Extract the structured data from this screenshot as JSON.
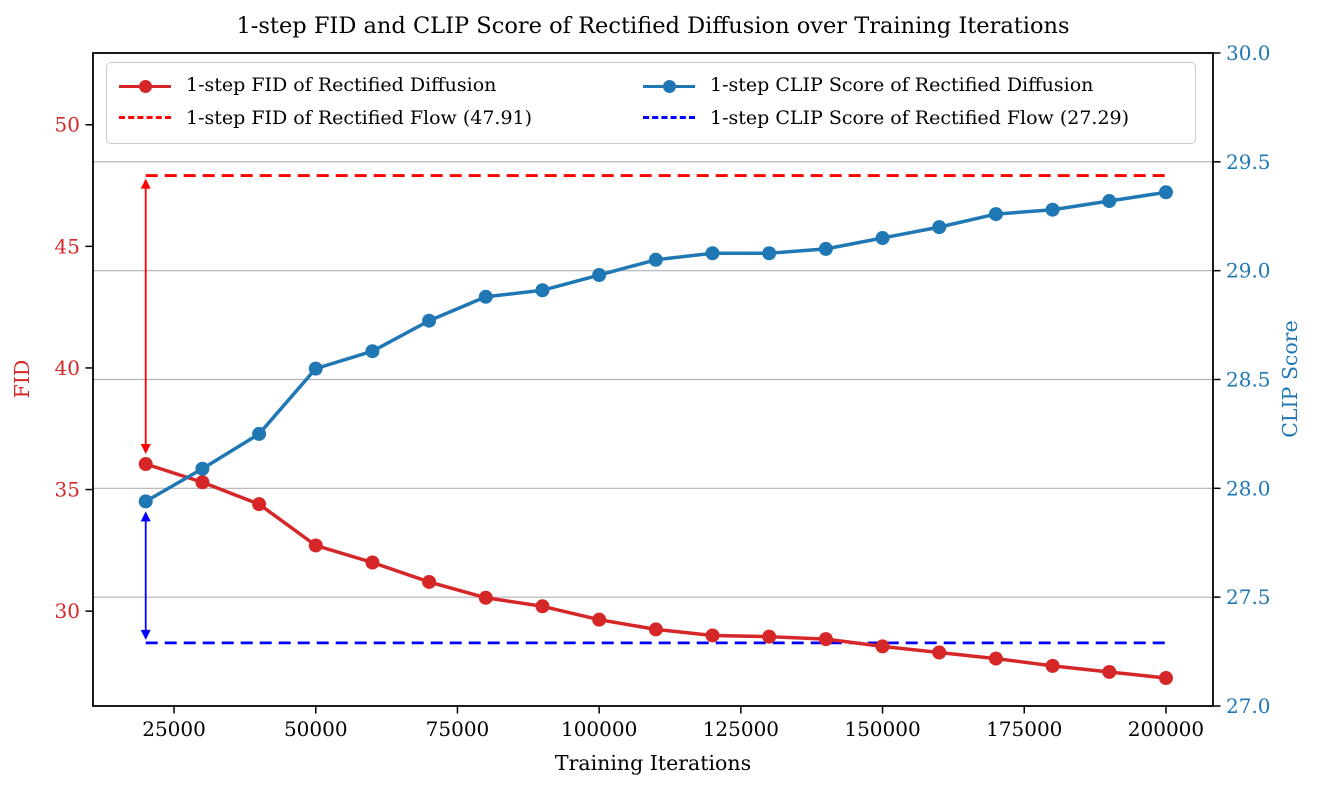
{
  "chart_data": {
    "type": "line",
    "title": "1-step FID and CLIP Score of Rectified Diffusion over Training Iterations",
    "xlabel": "Training Iterations",
    "ylabel_left": "FID",
    "ylabel_right": "CLIP Score",
    "grid": "horizontal-only",
    "legend_position": "upper center, two columns, inside axes",
    "colors": {
      "fid_series": "#d62728",
      "fid_baseline": "#ff0000",
      "clip_series": "#1f77b4",
      "clip_baseline": "#0000ff",
      "gridline": "#b3b3b3",
      "axis_border": "#000000"
    },
    "x": [
      20000,
      30000,
      40000,
      50000,
      60000,
      70000,
      80000,
      90000,
      100000,
      110000,
      120000,
      130000,
      140000,
      150000,
      160000,
      170000,
      180000,
      190000,
      200000
    ],
    "series": [
      {
        "name": "1-step FID of Rectified Diffusion",
        "axis": "left",
        "style": "solid-marker",
        "color": "#d62728",
        "values": [
          36.05,
          35.3,
          34.4,
          32.7,
          32.0,
          31.2,
          30.55,
          30.2,
          29.65,
          29.25,
          29.0,
          28.95,
          28.85,
          28.55,
          28.3,
          28.05,
          27.75,
          27.5,
          27.25
        ]
      },
      {
        "name": "1-step FID of Rectified Flow (47.91)",
        "axis": "left",
        "style": "dashed-baseline",
        "color": "#ff0000",
        "value": 47.91
      },
      {
        "name": "1-step CLIP Score of Rectified Diffusion",
        "axis": "right",
        "style": "solid-marker",
        "color": "#1f77b4",
        "values": [
          27.94,
          28.09,
          28.25,
          28.55,
          28.63,
          28.77,
          28.88,
          28.91,
          28.98,
          29.05,
          29.08,
          29.08,
          29.1,
          29.15,
          29.2,
          29.26,
          29.28,
          29.32,
          29.36
        ]
      },
      {
        "name": "1-step CLIP Score of Rectified Flow (27.29)",
        "axis": "right",
        "style": "dashed-baseline",
        "color": "#0000ff",
        "value": 27.29
      }
    ],
    "axes": {
      "x": {
        "lim": [
          10700,
          208300
        ],
        "tick_values": [
          25000,
          50000,
          75000,
          100000,
          125000,
          150000,
          175000,
          200000
        ],
        "tick_labels": [
          "25000",
          "50000",
          "75000",
          "100000",
          "125000",
          "150000",
          "175000",
          "200000"
        ],
        "label_color": "#000000"
      },
      "left": {
        "lim": [
          26.1,
          52.95
        ],
        "tick_values": [
          30,
          35,
          40,
          45,
          50
        ],
        "tick_labels": [
          "30",
          "35",
          "40",
          "45",
          "50"
        ],
        "label_color": "#d62728"
      },
      "right": {
        "lim": [
          27.0,
          30.0
        ],
        "tick_values": [
          27.0,
          27.5,
          28.0,
          28.5,
          29.0,
          29.5,
          30.0
        ],
        "tick_labels": [
          "27.0",
          "27.5",
          "28.0",
          "28.5",
          "29.0",
          "29.5",
          "30.0"
        ],
        "label_color": "#1f77b4"
      }
    },
    "annotations": [
      {
        "name": "fid-gap-arrow",
        "type": "double-arrow",
        "x": 20000,
        "axis": "left",
        "from": 47.91,
        "to": 36.05,
        "color": "#ff0000"
      },
      {
        "name": "clip-gap-arrow",
        "type": "double-arrow",
        "x": 20000,
        "axis": "right",
        "from": 27.94,
        "to": 27.29,
        "color": "#0000ff"
      }
    ]
  }
}
